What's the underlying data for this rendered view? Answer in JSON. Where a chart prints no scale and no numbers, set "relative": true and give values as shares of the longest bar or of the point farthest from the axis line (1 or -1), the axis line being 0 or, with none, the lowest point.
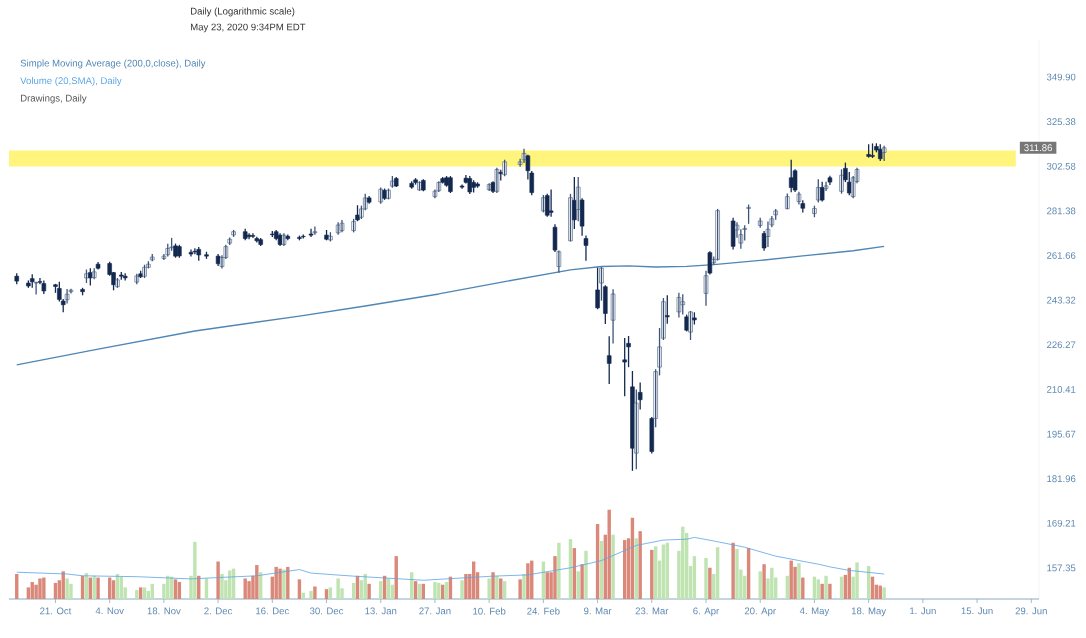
{
  "chart_data": [
    {
      "type": "candlestick",
      "title": "Daily (Logarithmic scale)",
      "subtitle": "May 23, 2020 9:34PM EDT",
      "x": [
        "2019-10-11",
        "2019-10-14",
        "2019-10-15",
        "2019-10-16",
        "2019-10-17",
        "2019-10-18",
        "2019-10-21",
        "2019-10-22",
        "2019-10-23",
        "2019-10-24",
        "2019-10-25",
        "2019-10-28",
        "2019-10-29",
        "2019-10-30",
        "2019-10-31",
        "2019-11-01",
        "2019-11-04",
        "2019-11-05",
        "2019-11-06",
        "2019-11-07",
        "2019-11-08",
        "2019-11-11",
        "2019-11-12",
        "2019-11-13",
        "2019-11-14",
        "2019-11-15",
        "2019-11-18",
        "2019-11-19",
        "2019-11-20",
        "2019-11-21",
        "2019-11-22",
        "2019-11-25",
        "2019-11-26",
        "2019-11-27",
        "2019-11-29",
        "2019-12-02",
        "2019-12-03",
        "2019-12-04",
        "2019-12-05",
        "2019-12-06",
        "2019-12-09",
        "2019-12-10",
        "2019-12-11",
        "2019-12-12",
        "2019-12-13",
        "2019-12-16",
        "2019-12-17",
        "2019-12-18",
        "2019-12-19",
        "2019-12-20",
        "2019-12-23",
        "2019-12-24",
        "2019-12-26",
        "2019-12-27",
        "2019-12-30",
        "2019-12-31",
        "2020-01-02",
        "2020-01-03",
        "2020-01-06",
        "2020-01-07",
        "2020-01-08",
        "2020-01-09",
        "2020-01-10",
        "2020-01-13",
        "2020-01-14",
        "2020-01-15",
        "2020-01-16",
        "2020-01-17",
        "2020-01-21",
        "2020-01-22",
        "2020-01-23",
        "2020-01-24",
        "2020-01-27",
        "2020-01-28",
        "2020-01-29",
        "2020-01-30",
        "2020-01-31",
        "2020-02-03",
        "2020-02-04",
        "2020-02-05",
        "2020-02-06",
        "2020-02-07",
        "2020-02-10",
        "2020-02-11",
        "2020-02-12",
        "2020-02-13",
        "2020-02-14",
        "2020-02-18",
        "2020-02-19",
        "2020-02-20",
        "2020-02-21",
        "2020-02-24",
        "2020-02-25",
        "2020-02-26",
        "2020-02-27",
        "2020-02-28",
        "2020-03-02",
        "2020-03-03",
        "2020-03-04",
        "2020-03-05",
        "2020-03-06",
        "2020-03-09",
        "2020-03-10",
        "2020-03-11",
        "2020-03-12",
        "2020-03-13",
        "2020-03-16",
        "2020-03-17",
        "2020-03-18",
        "2020-03-19",
        "2020-03-20",
        "2020-03-23",
        "2020-03-24",
        "2020-03-25",
        "2020-03-26",
        "2020-03-27",
        "2020-03-30",
        "2020-03-31",
        "2020-04-01",
        "2020-04-02",
        "2020-04-03",
        "2020-04-06",
        "2020-04-07",
        "2020-04-08",
        "2020-04-09",
        "2020-04-13",
        "2020-04-14",
        "2020-04-15",
        "2020-04-16",
        "2020-04-17",
        "2020-04-20",
        "2020-04-21",
        "2020-04-22",
        "2020-04-23",
        "2020-04-24",
        "2020-04-27",
        "2020-04-28",
        "2020-04-29",
        "2020-04-30",
        "2020-05-01",
        "2020-05-04",
        "2020-05-05",
        "2020-05-06",
        "2020-05-07",
        "2020-05-08",
        "2020-05-11",
        "2020-05-12",
        "2020-05-13",
        "2020-05-14",
        "2020-05-15",
        "2020-05-18",
        "2020-05-19",
        "2020-05-20",
        "2020-05-21",
        "2020-05-22"
      ],
      "ohlc": [
        [
          253,
          254,
          250,
          251
        ],
        [
          250.2,
          251,
          248.5,
          249
        ],
        [
          252,
          253.5,
          248.5,
          250.7
        ],
        [
          250.3,
          250.5,
          245.8,
          250.3
        ],
        [
          250.8,
          252,
          250,
          250.5
        ],
        [
          250,
          251,
          246,
          247
        ],
        [
          249.5,
          249.6,
          246.5,
          248.8
        ],
        [
          248,
          250.5,
          243,
          243.6
        ],
        [
          243,
          243.5,
          238.8,
          241.5
        ],
        [
          243.5,
          247.5,
          242.3,
          245.7
        ],
        [
          246.7,
          247.6,
          246.2,
          247.3
        ],
        [
          247.6,
          248,
          245.5,
          246.7
        ],
        [
          252.3,
          255.5,
          250.5,
          254
        ],
        [
          254.5,
          256,
          249.5,
          252.3
        ],
        [
          252.4,
          256,
          252,
          254.8
        ],
        [
          258,
          258.7,
          256,
          256.3
        ],
        [
          258.3,
          258.8,
          253.5,
          253.7
        ],
        [
          254.5,
          254.5,
          247.5,
          249.5
        ],
        [
          248.7,
          252,
          248.5,
          251.5
        ],
        [
          253.5,
          254.5,
          251.8,
          253
        ],
        [
          253,
          254,
          251.5,
          252.3
        ],
        [
          250.6,
          253.7,
          250,
          253.1
        ],
        [
          254,
          255,
          252.5,
          252.8
        ],
        [
          253,
          257.5,
          252.5,
          256.7
        ],
        [
          256.7,
          259,
          256.5,
          258
        ],
        [
          259.8,
          262,
          259.5,
          261
        ],
        [
          260.4,
          262,
          260,
          261.4
        ],
        [
          262,
          266.5,
          261.5,
          264.7
        ],
        [
          265,
          269,
          264,
          265.3
        ],
        [
          265.8,
          266.5,
          261,
          261.4
        ],
        [
          265.5,
          266,
          261,
          261.5
        ],
        [
          263,
          264,
          261.5,
          262.3
        ],
        [
          263.5,
          264.5,
          262.5,
          263.2
        ],
        [
          264.3,
          265,
          259.7,
          261.9
        ],
        [
          262,
          263,
          260.5,
          261.4
        ],
        [
          261.4,
          262,
          257.5,
          258.2
        ],
        [
          257,
          261.5,
          256.5,
          260.8
        ],
        [
          260.8,
          266,
          260.5,
          265.5
        ],
        [
          267,
          269.2,
          266.5,
          268.7
        ],
        [
          270.6,
          272.5,
          270,
          272
        ],
        [
          272,
          273,
          268.5,
          269
        ],
        [
          270.5,
          271,
          269,
          269.8
        ],
        [
          270.3,
          271,
          269.5,
          270
        ],
        [
          269,
          269.5,
          267.5,
          268
        ],
        [
          268.5,
          269,
          266,
          266.4
        ],
        [
          271,
          272,
          270,
          270.7
        ],
        [
          272,
          272.5,
          268.5,
          269
        ],
        [
          270.5,
          271,
          266,
          266.4
        ],
        [
          266.4,
          271,
          266,
          270.5
        ],
        [
          270,
          270.5,
          268.5,
          269
        ],
        [
          269.5,
          270,
          268.5,
          269
        ],
        [
          270,
          270.5,
          269.3,
          269.8
        ],
        [
          271,
          273,
          270,
          270.5
        ],
        [
          271.5,
          274,
          271,
          272
        ],
        [
          270.5,
          272.5,
          268.5,
          268.7
        ],
        [
          268.4,
          271.5,
          268,
          270
        ],
        [
          271.5,
          276,
          271,
          275
        ],
        [
          272.5,
          277,
          272,
          275.8
        ],
        [
          272.5,
          277.5,
          272,
          276.6
        ],
        [
          279.5,
          283.7,
          277,
          277.3
        ],
        [
          278.5,
          283.5,
          278,
          282.3
        ],
        [
          282.3,
          289,
          282,
          287.4
        ],
        [
          287.4,
          288,
          285,
          285.4
        ],
        [
          285.5,
          292,
          285,
          291.5
        ],
        [
          291,
          291.5,
          286.8,
          287.2
        ],
        [
          287.2,
          291.5,
          287,
          291
        ],
        [
          293,
          297.5,
          292.5,
          295.4
        ],
        [
          296.6,
          297,
          292.8,
          293
        ],
        [
          294.3,
          295,
          292,
          292.5
        ],
        [
          296,
          296.5,
          294,
          294.7
        ],
        [
          291.2,
          295,
          291,
          294.7
        ],
        [
          295.7,
          296,
          290.8,
          291.1
        ],
        [
          288,
          291,
          287.5,
          290.6
        ],
        [
          290.8,
          295,
          290.5,
          294.7
        ],
        [
          296.6,
          297,
          294.5,
          294.8
        ],
        [
          297,
          297.5,
          293,
          293.4
        ],
        [
          297,
          297.5,
          290,
          290.4
        ],
        [
          293,
          293.5,
          292,
          292.5
        ],
        [
          296.8,
          298,
          294.5,
          294.8
        ],
        [
          296.6,
          297.5,
          289.5,
          290.2
        ],
        [
          294.7,
          295.5,
          290.2,
          292.4
        ],
        [
          294,
          294.5,
          292.5,
          293
        ],
        [
          291.3,
          294,
          291,
          293.7
        ],
        [
          294.7,
          295,
          290,
          290.5
        ],
        [
          290.5,
          301.5,
          290,
          301
        ],
        [
          299.6,
          300.5,
          296,
          299
        ],
        [
          298.5,
          305.5,
          298,
          304.8
        ],
        [
          303.5,
          306,
          302.7,
          304.8
        ],
        [
          305.8,
          311,
          304.5,
          309
        ],
        [
          307.8,
          308,
          296.5,
          300.4
        ],
        [
          299.3,
          300,
          289,
          289.9
        ],
        [
          281.4,
          288.5,
          281,
          287.5
        ],
        [
          288.5,
          289,
          279,
          279.4
        ],
        [
          281.4,
          291,
          279,
          280.7
        ],
        [
          274,
          275,
          263.5,
          264
        ],
        [
          257,
          263.5,
          254.7,
          263.3
        ],
        [
          268,
          289,
          268,
          287.5
        ],
        [
          286.3,
          297,
          273.5,
          277.3
        ],
        [
          282,
          297,
          277,
          292.5
        ],
        [
          286.4,
          287,
          270.5,
          274.5
        ],
        [
          269,
          270,
          259.7,
          266
        ],
        [
          247.4,
          256.3,
          240,
          240.3
        ],
        [
          250.2,
          256.5,
          243.4,
          256.3
        ],
        [
          248.7,
          249,
          234.3,
          238.1
        ],
        [
          222.3,
          229.2,
          212.5,
          219.5
        ],
        [
          235.5,
          247.4,
          227,
          245.8
        ],
        [
          220.8,
          228.5,
          208.3,
          220
        ],
        [
          226.8,
          229.3,
          218.4,
          225.5
        ],
        [
          211.3,
          216.6,
          184.5,
          191.2
        ],
        [
          189.7,
          210.2,
          185,
          205.8
        ],
        [
          209.4,
          212.6,
          203.9,
          206.9
        ],
        [
          200.7,
          201,
          189.8,
          190.2
        ],
        [
          200.7,
          217.2,
          198.1,
          216.6
        ],
        [
          218.2,
          232.3,
          215.5,
          225.5
        ],
        [
          228.7,
          243.9,
          228.3,
          242.7
        ],
        [
          237.3,
          245,
          234.4,
          236.8
        ],
        [
          238.7,
          246,
          236.8,
          244.4
        ],
        [
          241.5,
          245.4,
          238,
          242.7
        ],
        [
          236.8,
          237.4,
          231.5,
          231.7
        ],
        [
          231,
          238.8,
          228.3,
          238.7
        ],
        [
          236.4,
          238.3,
          234.1,
          235.6
        ],
        [
          246,
          255,
          241.4,
          253.2
        ],
        [
          262.9,
          263.2,
          254,
          254.3
        ],
        [
          258.6,
          261,
          258,
          260
        ],
        [
          260,
          282,
          259.8,
          281.5
        ],
        [
          276.8,
          278,
          264.5,
          265.6
        ],
        [
          272.8,
          276,
          269.6,
          274.9
        ],
        [
          267,
          272.8,
          264.8,
          270.7
        ],
        [
          273,
          274.6,
          268.4,
          273.5
        ],
        [
          282.5,
          284,
          275.8,
          283
        ],
        [
          274.8,
          278,
          274,
          276.8
        ],
        [
          271.2,
          272,
          264,
          264.9
        ],
        [
          269.9,
          276.3,
          265.6,
          273.1
        ],
        [
          275,
          278.8,
          274.3,
          277.8
        ],
        [
          279.6,
          282,
          277.6,
          281.4
        ],
        [
          282.4,
          289.2,
          282.4,
          288
        ],
        [
          297,
          305.5,
          290.4,
          292.3
        ],
        [
          300.4,
          300.8,
          290.5,
          291.1
        ],
        [
          285.7,
          290,
          284.6,
          289.2
        ],
        [
          284.8,
          286,
          281,
          282.6
        ],
        [
          280.2,
          283.5,
          278.8,
          282.5
        ],
        [
          286.4,
          296,
          285.6,
          292.3
        ],
        [
          292.3,
          294.7,
          286,
          286.4
        ],
        [
          291.8,
          294.7,
          291,
          293.1
        ],
        [
          297,
          297.6,
          293.8,
          294.9
        ],
        [
          290.5,
          300.8,
          289.7,
          298.2
        ],
        [
          301.6,
          304.1,
          295.2,
          296
        ],
        [
          294.9,
          299.5,
          288.9,
          289.7
        ],
        [
          288,
          297.5,
          287.5,
          297
        ],
        [
          295.2,
          301.5,
          294.7,
          301
        ],
        [
          308.5,
          313.3,
          307.2,
          307.5
        ],
        [
          308,
          313.7,
          307,
          307.5
        ],
        [
          312.5,
          313.8,
          309.9,
          310.7
        ],
        [
          311.1,
          313.3,
          305.6,
          306.3
        ],
        [
          309.5,
          312.5,
          305.5,
          311.86
        ]
      ],
      "series": [
        {
          "type": "line",
          "name": "Simple Moving Average (200,0,close), Daily",
          "color": "#4f86b5",
          "x": [
            "2019-10-11",
            "2019-10-31",
            "2019-11-26",
            "2019-12-23",
            "2020-01-09",
            "2020-01-28",
            "2020-02-14",
            "2020-03-02",
            "2020-03-10",
            "2020-03-17",
            "2020-03-24",
            "2020-04-01",
            "2020-04-08",
            "2020-04-20",
            "2020-05-01",
            "2020-05-14",
            "2020-05-22"
          ],
          "values": [
            219.0,
            224.4,
            231.4,
            237.1,
            241.0,
            245.8,
            250.8,
            255.6,
            257.0,
            257.3,
            256.8,
            257.1,
            257.8,
            259.6,
            261.5,
            263.7,
            265.6
          ]
        }
      ],
      "bands": [
        {
          "axis": "y",
          "from": 302.5,
          "to": 310.5,
          "color": "#fff47c"
        }
      ],
      "annotations": [
        {
          "text": "311.86",
          "y": 311.86
        },
        "Drawings, Daily"
      ],
      "xlim": [
        "2019-10-09",
        "2020-07-01"
      ],
      "ylim": [
        149.6,
        371.7
      ],
      "log": "y",
      "yticks": [
        {
          "value": 157.35,
          "label": "157.35"
        },
        {
          "value": 169.21,
          "label": "169.21"
        },
        {
          "value": 181.96,
          "label": "181.96"
        },
        {
          "value": 195.67,
          "label": "195.67"
        },
        {
          "value": 210.41,
          "label": "210.41"
        },
        {
          "value": 226.27,
          "label": "226.27"
        },
        {
          "value": 243.32,
          "label": "243.32"
        },
        {
          "value": 261.66,
          "label": "261.66"
        },
        {
          "value": 281.38,
          "label": "281.38"
        },
        {
          "value": 302.58,
          "label": "302.58"
        },
        {
          "value": 325.38,
          "label": "325.38"
        },
        {
          "value": 349.9,
          "label": "349.90"
        }
      ],
      "tick_labels": "y",
      "legend": "top left"
    },
    {
      "type": "bar",
      "relative": true,
      "x": [
        "2019-10-11",
        "2019-10-14",
        "2019-10-15",
        "2019-10-16",
        "2019-10-17",
        "2019-10-18",
        "2019-10-21",
        "2019-10-22",
        "2019-10-23",
        "2019-10-24",
        "2019-10-25",
        "2019-10-28",
        "2019-10-29",
        "2019-10-30",
        "2019-10-31",
        "2019-11-01",
        "2019-11-04",
        "2019-11-05",
        "2019-11-06",
        "2019-11-07",
        "2019-11-08",
        "2019-11-11",
        "2019-11-12",
        "2019-11-13",
        "2019-11-14",
        "2019-11-15",
        "2019-11-18",
        "2019-11-19",
        "2019-11-20",
        "2019-11-21",
        "2019-11-22",
        "2019-11-25",
        "2019-11-26",
        "2019-11-27",
        "2019-11-29",
        "2019-12-02",
        "2019-12-03",
        "2019-12-04",
        "2019-12-05",
        "2019-12-06",
        "2019-12-09",
        "2019-12-10",
        "2019-12-11",
        "2019-12-12",
        "2019-12-13",
        "2019-12-16",
        "2019-12-17",
        "2019-12-18",
        "2019-12-19",
        "2019-12-20",
        "2019-12-23",
        "2019-12-24",
        "2019-12-26",
        "2019-12-27",
        "2019-12-30",
        "2019-12-31",
        "2020-01-02",
        "2020-01-03",
        "2020-01-06",
        "2020-01-07",
        "2020-01-08",
        "2020-01-09",
        "2020-01-10",
        "2020-01-13",
        "2020-01-14",
        "2020-01-15",
        "2020-01-16",
        "2020-01-17",
        "2020-01-21",
        "2020-01-22",
        "2020-01-23",
        "2020-01-24",
        "2020-01-27",
        "2020-01-28",
        "2020-01-29",
        "2020-01-30",
        "2020-01-31",
        "2020-02-03",
        "2020-02-04",
        "2020-02-05",
        "2020-02-06",
        "2020-02-07",
        "2020-02-10",
        "2020-02-11",
        "2020-02-12",
        "2020-02-13",
        "2020-02-14",
        "2020-02-18",
        "2020-02-19",
        "2020-02-20",
        "2020-02-21",
        "2020-02-24",
        "2020-02-25",
        "2020-02-26",
        "2020-02-27",
        "2020-02-28",
        "2020-03-02",
        "2020-03-03",
        "2020-03-04",
        "2020-03-05",
        "2020-03-06",
        "2020-03-09",
        "2020-03-10",
        "2020-03-11",
        "2020-03-12",
        "2020-03-13",
        "2020-03-16",
        "2020-03-17",
        "2020-03-18",
        "2020-03-19",
        "2020-03-20",
        "2020-03-23",
        "2020-03-24",
        "2020-03-25",
        "2020-03-26",
        "2020-03-27",
        "2020-03-30",
        "2020-03-31",
        "2020-04-01",
        "2020-04-02",
        "2020-04-03",
        "2020-04-06",
        "2020-04-07",
        "2020-04-08",
        "2020-04-09",
        "2020-04-13",
        "2020-04-14",
        "2020-04-15",
        "2020-04-16",
        "2020-04-17",
        "2020-04-20",
        "2020-04-21",
        "2020-04-22",
        "2020-04-23",
        "2020-04-24",
        "2020-04-27",
        "2020-04-28",
        "2020-04-29",
        "2020-04-30",
        "2020-05-01",
        "2020-05-04",
        "2020-05-05",
        "2020-05-06",
        "2020-05-07",
        "2020-05-08",
        "2020-05-11",
        "2020-05-12",
        "2020-05-13",
        "2020-05-14",
        "2020-05-15",
        "2020-05-18",
        "2020-05-19",
        "2020-05-20",
        "2020-05-21",
        "2020-05-22"
      ],
      "series": [
        {
          "type": "bar",
          "values": [
            0.28,
            0.13,
            0.19,
            0.16,
            0.23,
            0.24,
            0.18,
            0.21,
            0.31,
            0.23,
            0.17,
            0.26,
            0.29,
            0.24,
            0.26,
            0.24,
            0.24,
            0.21,
            0.28,
            0.25,
            0.13,
            0.1,
            0.13,
            0.13,
            0.09,
            0.17,
            0.17,
            0.26,
            0.25,
            0.22,
            0.19,
            0.26,
            0.64,
            0.26,
            0.23,
            0.42,
            0.28,
            0.21,
            0.32,
            0.34,
            0.23,
            0.2,
            0.26,
            0.38,
            0.3,
            0.25,
            0.36,
            0.34,
            0.33,
            0.36,
            0.22,
            0.07,
            0.09,
            0.14,
            0.11,
            0.13,
            0.23,
            0.12,
            0.18,
            0.26,
            0.21,
            0.28,
            0.17,
            0.2,
            0.26,
            0.23,
            0.16,
            0.48,
            0.3,
            0.2,
            0.17,
            0.17,
            0.19,
            0.18,
            0.16,
            0.19,
            0.25,
            0.21,
            0.28,
            0.28,
            0.42,
            0.3,
            0.23,
            0.3,
            0.26,
            0.23,
            0.2,
            0.22,
            0.28,
            0.4,
            0.43,
            0.42,
            0.3,
            0.3,
            0.48,
            0.63,
            0.67,
            0.57,
            0.31,
            0.39,
            0.54,
            0.84,
            0.65,
            0.72,
            1,
            0.72,
            0.66,
            0.68,
            0.91,
            0.68,
            0.76,
            0.55,
            0.59,
            0.43,
            0.61,
            0.63,
            0.54,
            0.81,
            0.74,
            0.37,
            0.48,
            0.46,
            0.35,
            0.28,
            0.58,
            0.63,
            0.56,
            0.33,
            0.26,
            0.57,
            0.31,
            0.39,
            0.23,
            0.35,
            0.24,
            0.26,
            0.43,
            0.36,
            0.4,
            0.24,
            0.25,
            0.22,
            0.17,
            0.26,
            0.17,
            0.25,
            0.27,
            0.35,
            0.25,
            0.41,
            0.37,
            0.25,
            0.16,
            0.15,
            0.13
          ],
          "colors": [
            "#d9887a",
            "#d9887a",
            "#d9887a",
            "#d9887a",
            "#d9887a",
            "#d9887a",
            "#d9887a",
            "#d9887a",
            "#d9887a",
            "#bfe4b1",
            "#bfe4b1",
            "#d9887a",
            "#bfe4b1",
            "#d9887a",
            "#bfe4b1",
            "#d9887a",
            "#d9887a",
            "#d9887a",
            "#bfe4b1",
            "#bfe4b1",
            "#bfe4b1",
            "#bfe4b1",
            "#d9887a",
            "#bfe4b1",
            "#bfe4b1",
            "#bfe4b1",
            "#bfe4b1",
            "#bfe4b1",
            "#bfe4b1",
            "#d9887a",
            "#d9887a",
            "#bfe4b1",
            "#bfe4b1",
            "#d9887a",
            "#bfe4b1",
            "#d9887a",
            "#bfe4b1",
            "#bfe4b1",
            "#bfe4b1",
            "#bfe4b1",
            "#d9887a",
            "#d9887a",
            "#d9887a",
            "#d9887a",
            "#bfe4b1",
            "#d9887a",
            "#d9887a",
            "#d9887a",
            "#bfe4b1",
            "#d9887a",
            "#d9887a",
            "#bfe4b1",
            "#bfe4b1",
            "#d9887a",
            "#d9887a",
            "#bfe4b1",
            "#bfe4b1",
            "#bfe4b1",
            "#bfe4b1",
            "#d9887a",
            "#bfe4b1",
            "#bfe4b1",
            "#d9887a",
            "#bfe4b1",
            "#d9887a",
            "#bfe4b1",
            "#bfe4b1",
            "#d9887a",
            "#bfe4b1",
            "#d9887a",
            "#bfe4b1",
            "#d9887a",
            "#bfe4b1",
            "#bfe4b1",
            "#d9887a",
            "#bfe4b1",
            "#d9887a",
            "#bfe4b1",
            "#d9887a",
            "#d9887a",
            "#d9887a",
            "#d9887a",
            "#bfe4b1",
            "#d9887a",
            "#bfe4b1",
            "#d9887a",
            "#bfe4b1",
            "#d9887a",
            "#bfe4b1",
            "#d9887a",
            "#d9887a",
            "#bfe4b1",
            "#d9887a",
            "#d9887a",
            "#d9887a",
            "#bfe4b1",
            "#bfe4b1",
            "#d9887a",
            "#bfe4b1",
            "#d9887a",
            "#bfe4b1",
            "#d9887a",
            "#bfe4b1",
            "#d9887a",
            "#d9887a",
            "#bfe4b1",
            "#d9887a",
            "#d9887a",
            "#d9887a",
            "#bfe4b1",
            "#d9887a",
            "#d9887a",
            "#bfe4b1",
            "#bfe4b1",
            "#bfe4b1",
            "#bfe4b1",
            "#bfe4b1",
            "#bfe4b1",
            "#bfe4b1",
            "#bfe4b1",
            "#bfe4b1",
            "#bfe4b1",
            "#d9887a",
            "#bfe4b1",
            "#bfe4b1",
            "#d9887a",
            "#bfe4b1",
            "#bfe4b1",
            "#bfe4b1",
            "#d9887a",
            "#bfe4b1",
            "#d9887a",
            "#bfe4b1",
            "#bfe4b1",
            "#bfe4b1",
            "#bfe4b1",
            "#d9887a",
            "#d9887a",
            "#bfe4b1",
            "#d9887a",
            "#bfe4b1",
            "#bfe4b1",
            "#d9887a",
            "#bfe4b1",
            "#d9887a",
            "#bfe4b1",
            "#d9887a",
            "#d9887a",
            "#bfe4b1",
            "#bfe4b1",
            "#bfe4b1",
            "#d9887a",
            "#d9887a",
            "#d9887a",
            "#bfe4b1"
          ]
        },
        {
          "type": "line",
          "name": "Volume (20,SMA), Daily",
          "color": "#5aa5e6",
          "x": [
            "2019-10-11",
            "2019-10-24",
            "2019-10-28",
            "2019-11-11",
            "2019-11-25",
            "2019-12-02",
            "2019-12-12",
            "2019-12-23",
            "2019-12-26",
            "2020-01-06",
            "2020-01-24",
            "2020-02-11",
            "2020-02-20",
            "2020-03-02",
            "2020-03-10",
            "2020-03-19",
            "2020-03-26",
            "2020-04-01",
            "2020-04-03",
            "2020-04-08",
            "2020-04-16",
            "2020-04-24",
            "2020-05-05",
            "2020-05-08",
            "2020-05-13",
            "2020-05-22"
          ],
          "values": [
            0.3,
            0.28,
            0.26,
            0.25,
            0.225,
            0.24,
            0.26,
            0.33,
            0.29,
            0.256,
            0.21,
            0.256,
            0.27,
            0.35,
            0.43,
            0.6,
            0.66,
            0.67,
            0.69,
            0.65,
            0.58,
            0.48,
            0.39,
            0.36,
            0.32,
            0.28
          ]
        }
      ],
      "xlim": [
        "2019-10-09",
        "2020-07-01"
      ],
      "xticks": [
        {
          "value": "2019-10-21",
          "label": "21. Oct"
        },
        {
          "value": "2019-11-04",
          "label": "4. Nov"
        },
        {
          "value": "2019-11-18",
          "label": "18. Nov"
        },
        {
          "value": "2019-12-02",
          "label": "2. Dec"
        },
        {
          "value": "2019-12-16",
          "label": "16. Dec"
        },
        {
          "value": "2019-12-30",
          "label": "30. Dec"
        },
        {
          "value": "2020-01-13",
          "label": "13. Jan"
        },
        {
          "value": "2020-01-27",
          "label": "27. Jan"
        },
        {
          "value": "2020-02-10",
          "label": "10. Feb"
        },
        {
          "value": "2020-02-24",
          "label": "24. Feb"
        },
        {
          "value": "2020-03-09",
          "label": "9. Mar"
        },
        {
          "value": "2020-03-23",
          "label": "23. Mar"
        },
        {
          "value": "2020-04-06",
          "label": "6. Apr"
        },
        {
          "value": "2020-04-20",
          "label": "20. Apr"
        },
        {
          "value": "2020-05-04",
          "label": "4. May"
        },
        {
          "value": "2020-05-18",
          "label": "18. May"
        },
        {
          "value": "2020-06-01",
          "label": "1. Jun"
        },
        {
          "value": "2020-06-15",
          "label": "15. Jun"
        },
        {
          "value": "2020-06-29",
          "label": "29. Jun"
        }
      ],
      "tick_labels": "x",
      "legend": "top left"
    }
  ]
}
